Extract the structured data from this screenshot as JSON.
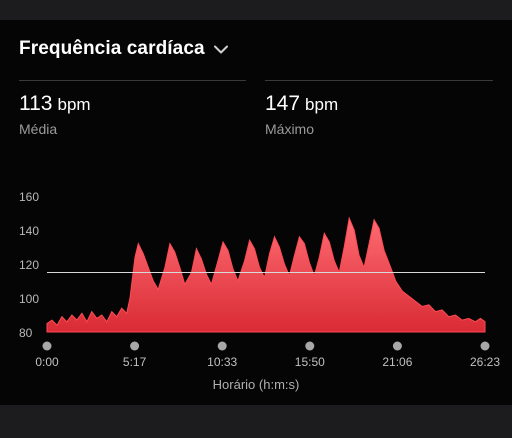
{
  "header": {
    "title": "Frequência cardíaca",
    "dropdown_icon": "chevron-down-icon"
  },
  "stats": [
    {
      "value": "113",
      "unit": "bpm",
      "label": "Média"
    },
    {
      "value": "147",
      "unit": "bpm",
      "label": "Máximo"
    }
  ],
  "colors": {
    "accent": "#f03a45",
    "background": "#000000",
    "panel": "#1c1c1e"
  },
  "chart_data": {
    "type": "area",
    "title": "",
    "xlabel": "Horário (h:m:s)",
    "ylabel": "",
    "ylim": [
      80,
      165
    ],
    "y_ticks": [
      "160",
      "140",
      "120",
      "100",
      "80"
    ],
    "x_ticks": [
      "0:00",
      "5:17",
      "10:33",
      "15:50",
      "21:06",
      "26:23"
    ],
    "x_unit": "minutes",
    "x_range": [
      0,
      26.38
    ],
    "reference_line": 115,
    "grid": false,
    "series": [
      {
        "values": [
          [
            0.0,
            85
          ],
          [
            0.3,
            87
          ],
          [
            0.6,
            84
          ],
          [
            0.9,
            89
          ],
          [
            1.2,
            86
          ],
          [
            1.5,
            90
          ],
          [
            1.8,
            87
          ],
          [
            2.1,
            91
          ],
          [
            2.4,
            86
          ],
          [
            2.7,
            92
          ],
          [
            3.0,
            88
          ],
          [
            3.3,
            90
          ],
          [
            3.6,
            86
          ],
          [
            3.9,
            92
          ],
          [
            4.2,
            89
          ],
          [
            4.5,
            94
          ],
          [
            4.8,
            91
          ],
          [
            5.0,
            100
          ],
          [
            5.3,
            124
          ],
          [
            5.5,
            132
          ],
          [
            5.8,
            126
          ],
          [
            6.1,
            118
          ],
          [
            6.4,
            110
          ],
          [
            6.7,
            105
          ],
          [
            7.1,
            118
          ],
          [
            7.4,
            132
          ],
          [
            7.7,
            127
          ],
          [
            8.0,
            118
          ],
          [
            8.3,
            108
          ],
          [
            8.7,
            115
          ],
          [
            9.0,
            129
          ],
          [
            9.3,
            123
          ],
          [
            9.6,
            114
          ],
          [
            9.9,
            108
          ],
          [
            10.3,
            122
          ],
          [
            10.6,
            133
          ],
          [
            10.9,
            128
          ],
          [
            11.2,
            117
          ],
          [
            11.5,
            110
          ],
          [
            11.9,
            122
          ],
          [
            12.2,
            134
          ],
          [
            12.5,
            129
          ],
          [
            12.8,
            118
          ],
          [
            13.1,
            112
          ],
          [
            13.4,
            126
          ],
          [
            13.7,
            136
          ],
          [
            14.0,
            130
          ],
          [
            14.3,
            120
          ],
          [
            14.6,
            113
          ],
          [
            14.9,
            125
          ],
          [
            15.2,
            136
          ],
          [
            15.5,
            132
          ],
          [
            15.8,
            121
          ],
          [
            16.1,
            113
          ],
          [
            16.4,
            124
          ],
          [
            16.7,
            138
          ],
          [
            17.0,
            133
          ],
          [
            17.3,
            122
          ],
          [
            17.6,
            115
          ],
          [
            17.9,
            130
          ],
          [
            18.2,
            147
          ],
          [
            18.5,
            140
          ],
          [
            18.8,
            125
          ],
          [
            19.1,
            118
          ],
          [
            19.4,
            132
          ],
          [
            19.7,
            146
          ],
          [
            20.0,
            141
          ],
          [
            20.3,
            128
          ],
          [
            20.7,
            118
          ],
          [
            21.0,
            110
          ],
          [
            21.4,
            104
          ],
          [
            21.8,
            101
          ],
          [
            22.2,
            98
          ],
          [
            22.6,
            95
          ],
          [
            23.0,
            96
          ],
          [
            23.4,
            92
          ],
          [
            23.8,
            93
          ],
          [
            24.2,
            89
          ],
          [
            24.6,
            90
          ],
          [
            25.0,
            87
          ],
          [
            25.4,
            88
          ],
          [
            25.8,
            86
          ],
          [
            26.1,
            88
          ],
          [
            26.38,
            86
          ]
        ]
      }
    ]
  }
}
